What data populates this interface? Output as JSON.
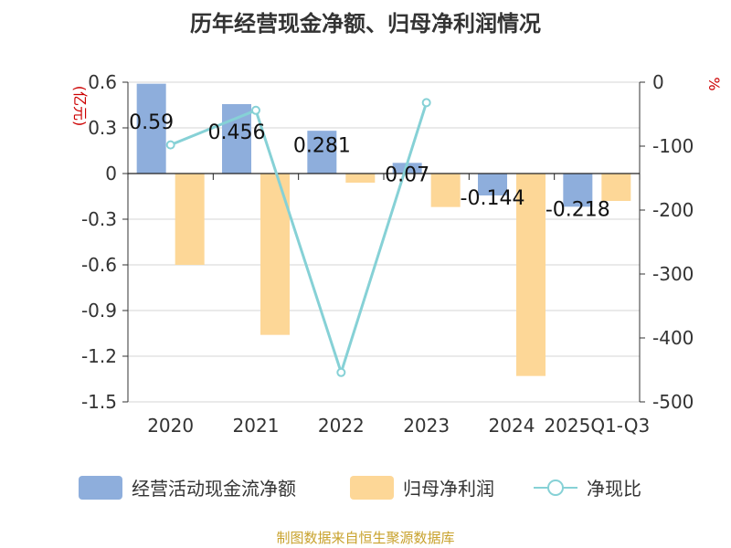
{
  "chart_data": {
    "type": "bar",
    "title": "历年经营现金净额、归母净利润情况",
    "categories": [
      "2020",
      "2021",
      "2022",
      "2023",
      "2024",
      "2025Q1-Q3"
    ],
    "left_axis": {
      "unit": "(亿元)",
      "ylim": [
        -1.5,
        0.6
      ],
      "ticks": [
        "0.6",
        "0.3",
        "0",
        "-0.3",
        "-0.6",
        "-0.9",
        "-1.2",
        "-1.5"
      ]
    },
    "right_axis": {
      "unit": "%",
      "ylim": [
        -500,
        0
      ],
      "ticks": [
        "0",
        "-100",
        "-200",
        "-300",
        "-400",
        "-500"
      ]
    },
    "series": [
      {
        "name": "经营活动现金流净额",
        "type": "bar",
        "axis": "left",
        "color": "#8eaedc",
        "values": [
          0.59,
          0.456,
          0.281,
          0.07,
          -0.144,
          -0.218
        ],
        "labels": [
          "0.59",
          "0.456",
          "0.281",
          "0.07",
          "-0.144",
          "-0.218"
        ]
      },
      {
        "name": "归母净利润",
        "type": "bar",
        "axis": "left",
        "color": "#fdd797",
        "values": [
          -0.6,
          -1.06,
          -0.06,
          -0.22,
          -1.33,
          -0.18
        ]
      },
      {
        "name": "净现比",
        "type": "line",
        "axis": "right",
        "color": "#86d1d6",
        "values": [
          -98,
          -44,
          -454,
          -32,
          null,
          null
        ]
      }
    ],
    "grid": true,
    "legend_position": "bottom"
  },
  "footer": {
    "source": "制图数据来自恒生聚源数据库"
  }
}
